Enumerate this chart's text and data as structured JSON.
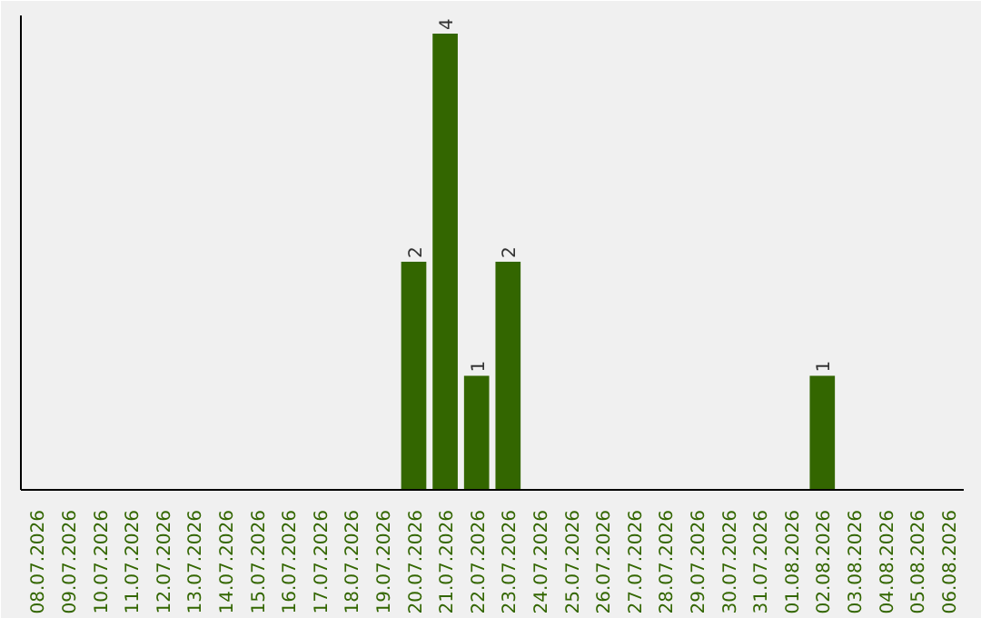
{
  "chart_data": {
    "type": "bar",
    "categories": [
      "08.07.2026",
      "09.07.2026",
      "10.07.2026",
      "11.07.2026",
      "12.07.2026",
      "13.07.2026",
      "14.07.2026",
      "15.07.2026",
      "16.07.2026",
      "17.07.2026",
      "18.07.2026",
      "19.07.2026",
      "20.07.2026",
      "21.07.2026",
      "22.07.2026",
      "23.07.2026",
      "24.07.2026",
      "25.07.2026",
      "26.07.2026",
      "27.07.2026",
      "28.07.2026",
      "29.07.2026",
      "30.07.2026",
      "31.07.2026",
      "01.08.2026",
      "02.08.2026",
      "03.08.2026",
      "04.08.2026",
      "05.08.2026",
      "06.08.2026"
    ],
    "values": [
      null,
      null,
      null,
      null,
      null,
      null,
      null,
      null,
      null,
      null,
      null,
      null,
      2,
      4,
      1,
      2,
      null,
      null,
      null,
      null,
      null,
      null,
      null,
      null,
      null,
      1,
      null,
      null,
      null,
      null
    ],
    "data_labels": true,
    "color": "#336600",
    "grid": false
  }
}
